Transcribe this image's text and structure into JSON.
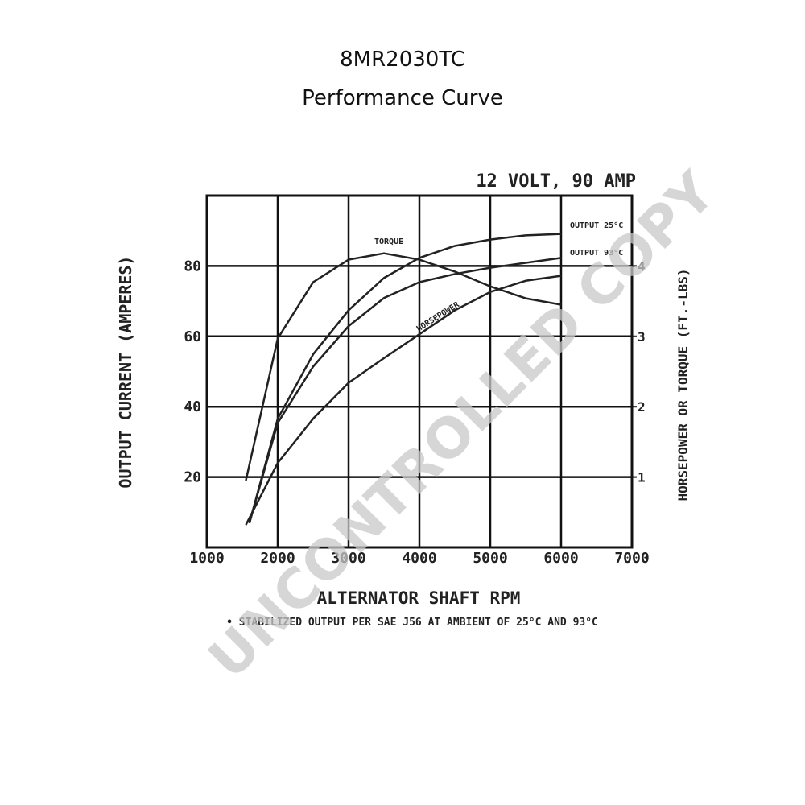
{
  "chart_data": {
    "type": "line",
    "title": "8MR2030TC",
    "subtitle": "Performance Curve",
    "annotation": "12 VOLT, 90 AMP",
    "ylabel": "OUTPUT CURRENT (AMPERES)",
    "y2label": "HORSEPOWER OR TORQUE (FT.-LBS)",
    "xlabel": "ALTERNATOR SHAFT RPM",
    "footnote": "• STABILIZED OUTPUT PER SAE J56 AT AMBIENT OF 25°C AND 93°C",
    "watermark": "UNCONTROLLED COPY",
    "xlim": [
      1000,
      7000
    ],
    "xticks": [
      1000,
      2000,
      3000,
      4000,
      5000,
      6000,
      7000
    ],
    "ylim": [
      0,
      100
    ],
    "yticks": [
      20,
      40,
      60,
      80
    ],
    "y2lim": [
      0,
      5
    ],
    "y2ticks": [
      1,
      2,
      3,
      4
    ],
    "grid": true,
    "series": [
      {
        "name": "TORQUE",
        "color": "#222222",
        "axis": "y2",
        "x": [
          1550,
          2000,
          2500,
          3000,
          3500,
          4000,
          4500,
          5000,
          5500,
          6000
        ],
        "values": [
          0.95,
          2.97,
          3.77,
          4.09,
          4.18,
          4.09,
          3.92,
          3.71,
          3.54,
          3.45
        ]
      },
      {
        "name": "OUTPUT 25°C",
        "color": "#222222",
        "x": [
          1600,
          2000,
          2500,
          3000,
          3500,
          4000,
          4500,
          5000,
          5500,
          6000
        ],
        "values": [
          6.9,
          36.6,
          54.9,
          67.4,
          76.6,
          82.3,
          85.7,
          87.5,
          88.7,
          89.1
        ]
      },
      {
        "name": "OUTPUT 93°C",
        "color": "#222222",
        "x": [
          1600,
          2000,
          2500,
          3000,
          3500,
          4000,
          4500,
          5000,
          5500,
          6000
        ],
        "values": [
          6.9,
          35.4,
          51.4,
          62.9,
          70.9,
          75.4,
          77.7,
          79.5,
          80.9,
          82.3
        ]
      },
      {
        "name": "HORSEPOWER",
        "color": "#222222",
        "axis": "y2",
        "x": [
          1550,
          2000,
          2500,
          3000,
          3500,
          4000,
          4500,
          5000,
          5500,
          6000
        ],
        "values": [
          0.32,
          1.2,
          1.83,
          2.34,
          2.69,
          3.03,
          3.37,
          3.63,
          3.79,
          3.86
        ]
      }
    ]
  }
}
